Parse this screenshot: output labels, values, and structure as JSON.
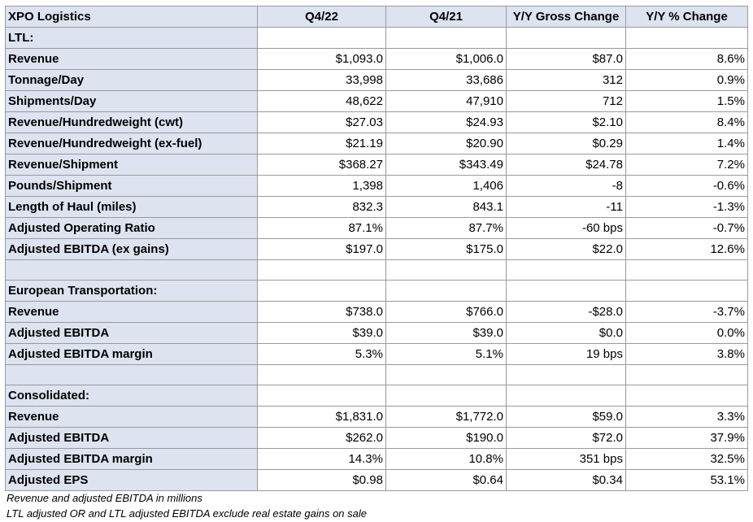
{
  "table": {
    "headers": [
      "XPO Logistics",
      "Q4/22",
      "Q4/21",
      "Y/Y Gross Change",
      "Y/Y % Change"
    ],
    "rows": [
      [
        "LTL:",
        "",
        "",
        "",
        ""
      ],
      [
        "Revenue",
        "$1,093.0",
        "$1,006.0",
        "$87.0",
        "8.6%"
      ],
      [
        "Tonnage/Day",
        "33,998",
        "33,686",
        "312",
        "0.9%"
      ],
      [
        "Shipments/Day",
        "48,622",
        "47,910",
        "712",
        "1.5%"
      ],
      [
        "Revenue/Hundredweight (cwt)",
        "$27.03",
        "$24.93",
        "$2.10",
        "8.4%"
      ],
      [
        "Revenue/Hundredweight (ex-fuel)",
        "$21.19",
        "$20.90",
        "$0.29",
        "1.4%"
      ],
      [
        "Revenue/Shipment",
        "$368.27",
        "$343.49",
        "$24.78",
        "7.2%"
      ],
      [
        "Pounds/Shipment",
        "1,398",
        "1,406",
        "-8",
        "-0.6%"
      ],
      [
        "Length of Haul (miles)",
        "832.3",
        "843.1",
        "-11",
        "-1.3%"
      ],
      [
        "Adjusted Operating Ratio",
        "87.1%",
        "87.7%",
        "-60 bps",
        "-0.7%"
      ],
      [
        "Adjusted EBITDA (ex gains)",
        "$197.0",
        "$175.0",
        "$22.0",
        "12.6%"
      ],
      [
        "",
        "",
        "",
        "",
        ""
      ],
      [
        "European Transportation:",
        "",
        "",
        "",
        ""
      ],
      [
        "Revenue",
        "$738.0",
        "$766.0",
        "-$28.0",
        "-3.7%"
      ],
      [
        "Adjusted EBITDA",
        "$39.0",
        "$39.0",
        "$0.0",
        "0.0%"
      ],
      [
        "Adjusted EBITDA margin",
        "5.3%",
        "5.1%",
        "19 bps",
        "3.8%"
      ],
      [
        "",
        "",
        "",
        "",
        ""
      ],
      [
        "Consolidated:",
        "",
        "",
        "",
        ""
      ],
      [
        "Revenue",
        "$1,831.0",
        "$1,772.0",
        "$59.0",
        "3.3%"
      ],
      [
        "Adjusted EBITDA",
        "$262.0",
        "$190.0",
        "$72.0",
        "37.9%"
      ],
      [
        "Adjusted EBITDA margin",
        "14.3%",
        "10.8%",
        "351 bps",
        "32.5%"
      ],
      [
        "Adjusted EPS",
        "$0.98",
        "$0.64",
        "$0.34",
        "53.1%"
      ]
    ]
  },
  "notes": [
    "Revenue and adjusted EBITDA in millions",
    "LTL adjusted OR and LTL adjusted EBITDA exclude real estate gains on sale"
  ]
}
